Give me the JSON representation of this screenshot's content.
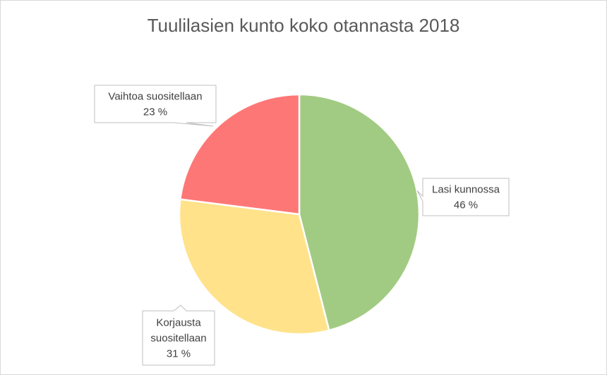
{
  "chart_data": {
    "type": "pie",
    "title": "Tuulilasien kunto koko otannasta 2018",
    "slices": [
      {
        "label": "Lasi kunnossa",
        "lines": [
          "Lasi kunnossa"
        ],
        "value": 46,
        "value_label": "46 %",
        "color": "#a1cb82"
      },
      {
        "label": "Korjausta suositellaan",
        "lines": [
          "Korjausta",
          "suositellaan"
        ],
        "value": 31,
        "value_label": "31 %",
        "color": "#ffe28a"
      },
      {
        "label": "Vaihtoa suositellaan",
        "lines": [
          "Vaihtoa suositellaan"
        ],
        "value": 23,
        "value_label": "23 %",
        "color": "#fe7777"
      }
    ],
    "start_angle": "12 o'clock",
    "direction": "clockwise",
    "legend": "none",
    "data_labels": "callouts"
  }
}
